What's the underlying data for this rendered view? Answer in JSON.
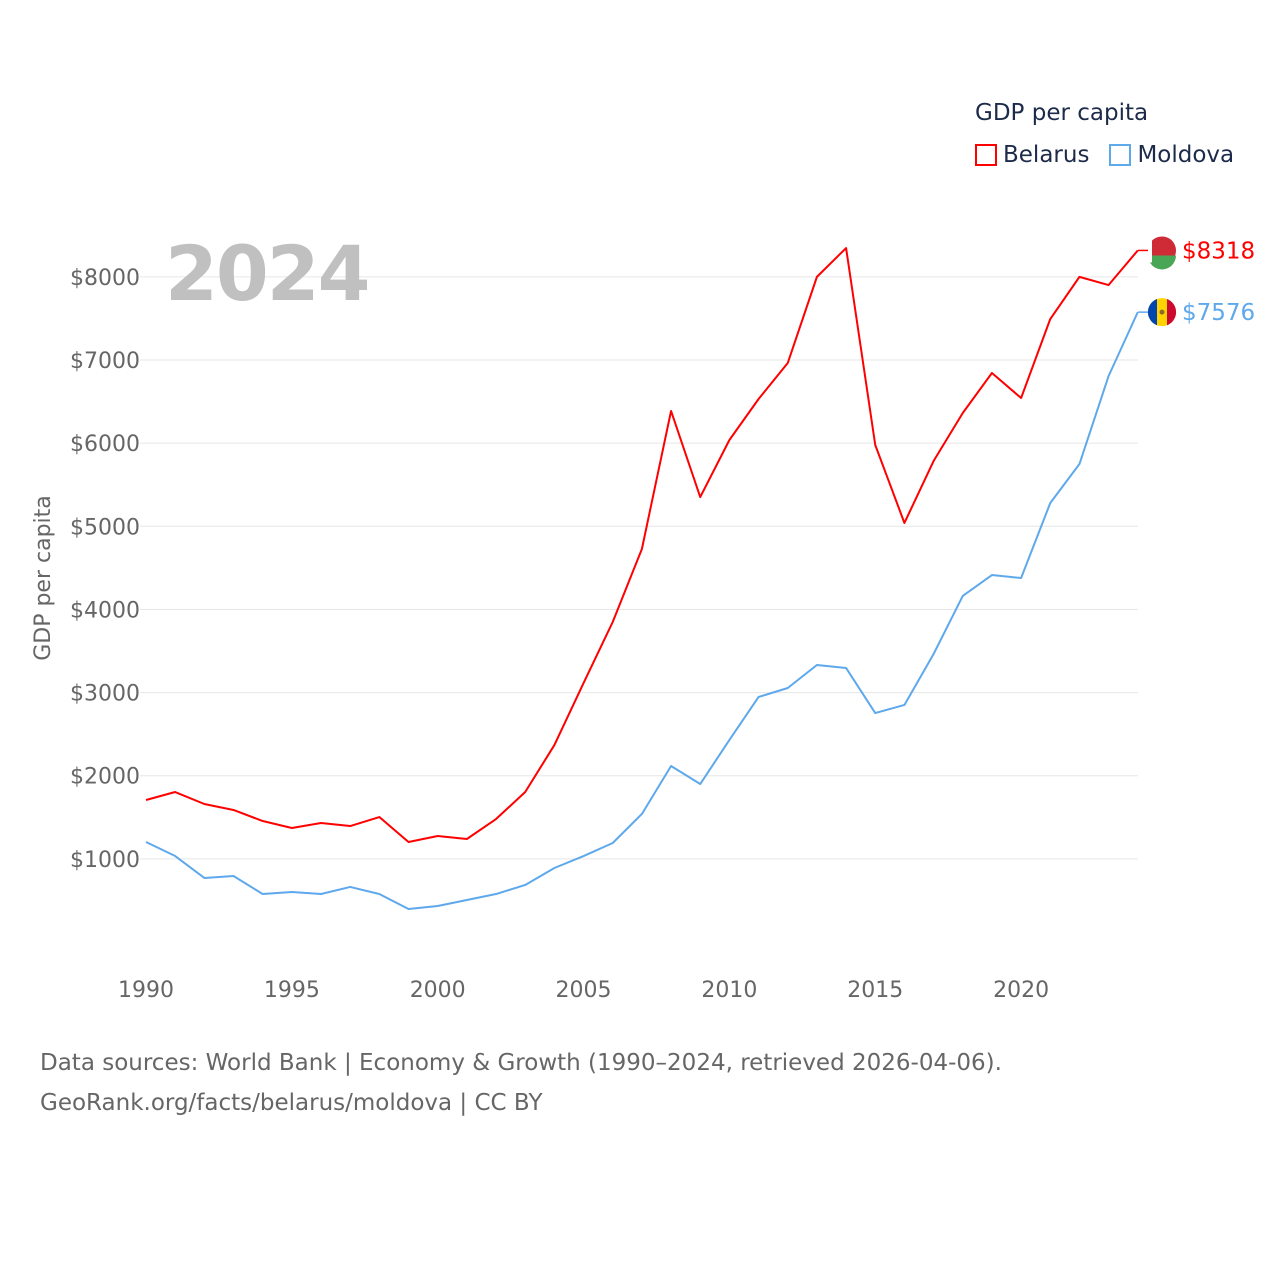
{
  "chart_data": {
    "type": "line",
    "title": "",
    "year_label": "2024",
    "ylabel": "GDP per capita",
    "xlabel": "",
    "xlim": [
      1990,
      2024
    ],
    "ylim": [
      0,
      8400
    ],
    "x_ticks": [
      "1990",
      "1995",
      "2000",
      "2005",
      "2010",
      "2015",
      "2020"
    ],
    "x_tick_values": [
      1990,
      1995,
      2000,
      2005,
      2010,
      2015,
      2020
    ],
    "y_ticks": [
      "$1000",
      "$2000",
      "$3000",
      "$4000",
      "$5000",
      "$6000",
      "$7000",
      "$8000"
    ],
    "y_tick_values": [
      1000,
      2000,
      3000,
      4000,
      5000,
      6000,
      7000,
      8000
    ],
    "legend": {
      "title": "GDP per capita",
      "placement": "top-right"
    },
    "x": [
      1990,
      1991,
      1992,
      1993,
      1994,
      1995,
      1996,
      1997,
      1998,
      1999,
      2000,
      2001,
      2002,
      2003,
      2004,
      2005,
      2006,
      2007,
      2008,
      2009,
      2010,
      2011,
      2012,
      2013,
      2014,
      2015,
      2016,
      2017,
      2018,
      2019,
      2020,
      2021,
      2022,
      2023,
      2024
    ],
    "series": [
      {
        "name": "Belarus",
        "color": "#ff0000",
        "end_label": "$8318",
        "values": [
          1708,
          1804,
          1660,
          1588,
          1455,
          1371,
          1431,
          1395,
          1503,
          1203,
          1275,
          1239,
          1479,
          1804,
          2369,
          3115,
          3849,
          4727,
          6387,
          5352,
          6038,
          6531,
          6964,
          8000,
          8347,
          5978,
          5040,
          5785,
          6363,
          6844,
          6543,
          7493,
          8000,
          7902,
          8318
        ]
      },
      {
        "name": "Moldova",
        "color": "#5ea8ec",
        "end_label": "$7576",
        "values": [
          1203,
          1034,
          770,
          794,
          577,
          601,
          577,
          662,
          577,
          397,
          433,
          505,
          577,
          686,
          890,
          1034,
          1191,
          1540,
          2117,
          1900,
          2430,
          2947,
          3055,
          3332,
          3296,
          2754,
          2851,
          3464,
          4162,
          4414,
          4378,
          5280,
          5749,
          6808,
          7576
        ]
      }
    ]
  },
  "footer": {
    "line1": "Data sources: World Bank | Economy & Growth (1990–2024, retrieved 2026-04-06).",
    "line2": "GeoRank.org/facts/belarus/moldova | CC BY"
  }
}
